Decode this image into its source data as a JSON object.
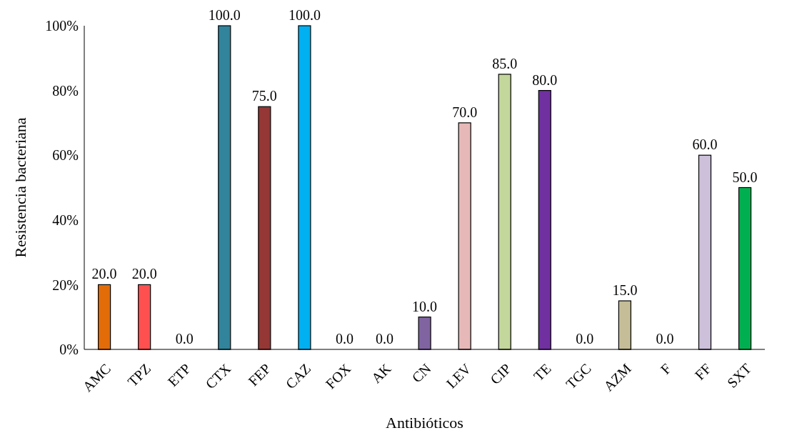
{
  "chart_data": {
    "type": "bar",
    "xlabel": "Antibióticos",
    "ylabel": "Resistencia bacteriana",
    "categories": [
      "AMC",
      "TPZ",
      "ETP",
      "CTX",
      "FEP",
      "CAZ",
      "FOX",
      "AK",
      "CN",
      "LEV",
      "CIP",
      "TE",
      "TGC",
      "AZM",
      "F",
      "FF",
      "SXT"
    ],
    "values": [
      20,
      20,
      0,
      100,
      75,
      100,
      0,
      0,
      10,
      70,
      85,
      80,
      0,
      15,
      0,
      60,
      50
    ],
    "value_labels": [
      "20.0",
      "20.0",
      "0.0",
      "100.0",
      "75.0",
      "100.0",
      "0.0",
      "0.0",
      "10.0",
      "70.0",
      "85.0",
      "80.0",
      "0.0",
      "15.0",
      "0.0",
      "60.0",
      "50.0"
    ],
    "colors": [
      "#e36c09",
      "#ff5050",
      null,
      "#31849b",
      "#953735",
      "#00b0f0",
      null,
      null,
      "#8064a2",
      "#e6b9b8",
      "#c3d69b",
      "#7030a0",
      null,
      "#c4bd97",
      null,
      "#ccc0da",
      "#00b050"
    ],
    "ylim": [
      0,
      100
    ],
    "yticks": [
      {
        "value": 0,
        "label": "0%"
      },
      {
        "value": 20,
        "label": "20%"
      },
      {
        "value": 40,
        "label": "40%"
      },
      {
        "value": 60,
        "label": "60%"
      },
      {
        "value": 80,
        "label": "80%"
      },
      {
        "value": 100,
        "label": "100%"
      }
    ],
    "grid": false,
    "legend": false
  }
}
